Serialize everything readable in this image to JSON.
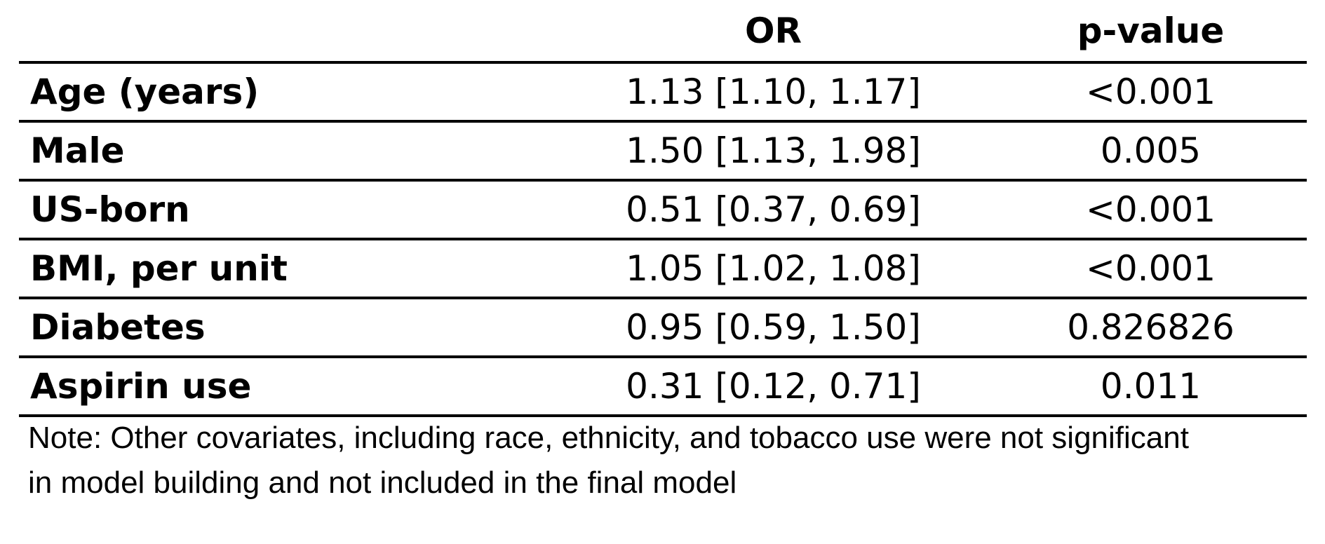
{
  "table": {
    "headers": [
      "",
      "OR",
      "p-value"
    ],
    "rows": [
      {
        "label": "Age (years)",
        "or": "1.13 [1.10, 1.17]",
        "p": "<0.001"
      },
      {
        "label": "Male",
        "or": "1.50 [1.13, 1.98]",
        "p": "0.005"
      },
      {
        "label": "US-born",
        "or": "0.51 [0.37, 0.69]",
        "p": "<0.001"
      },
      {
        "label": "BMI, per unit",
        "or": "1.05 [1.02, 1.08]",
        "p": "<0.001"
      },
      {
        "label": "Diabetes",
        "or": "0.95 [0.59, 1.50]",
        "p": "0.826826"
      },
      {
        "label": "Aspirin use",
        "or": "0.31 [0.12, 0.71]",
        "p": "0.011"
      }
    ]
  },
  "note": {
    "line1": "Note: Other covariates, including race, ethnicity, and tobacco use were not significant",
    "line2": "in model building and not included in the final model"
  }
}
